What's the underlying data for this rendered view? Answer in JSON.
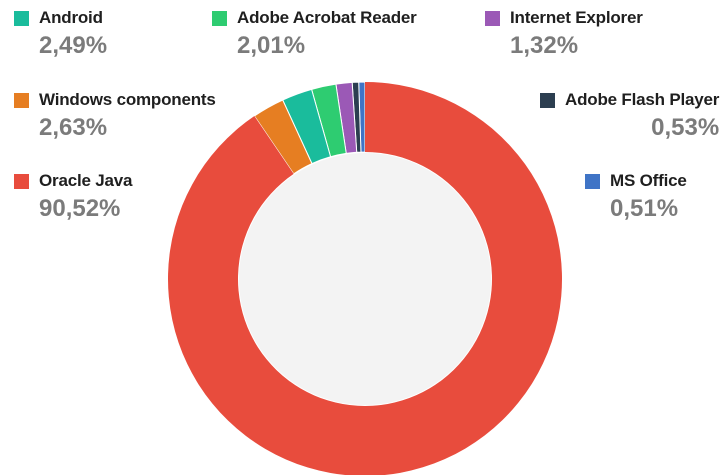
{
  "chart_data": {
    "type": "pie",
    "title": "",
    "donut": true,
    "start_at": "top, clockwise",
    "slices": [
      {
        "label": "Oracle Java",
        "value": 90.52,
        "value_label": "90,52%",
        "color": "#e84c3d"
      },
      {
        "label": "Windows components",
        "value": 2.63,
        "value_label": "2,63%",
        "color": "#e67e22"
      },
      {
        "label": "Android",
        "value": 2.49,
        "value_label": "2,49%",
        "color": "#1abc9c"
      },
      {
        "label": "Adobe Acrobat Reader",
        "value": 2.01,
        "value_label": "2,01%",
        "color": "#2ecc71"
      },
      {
        "label": "Internet Explorer",
        "value": 1.32,
        "value_label": "1,32%",
        "color": "#9b59b6"
      },
      {
        "label": "Adobe Flash Player",
        "value": 0.53,
        "value_label": "0,53%",
        "color": "#2c3e50"
      },
      {
        "label": "MS Office",
        "value": 0.51,
        "value_label": "0,51%",
        "color": "#3f74c6"
      }
    ],
    "legend_order": [
      "Android",
      "Adobe Acrobat Reader",
      "Internet Explorer",
      "Windows components",
      "Adobe Flash Player",
      "Oracle Java",
      "MS Office"
    ]
  }
}
